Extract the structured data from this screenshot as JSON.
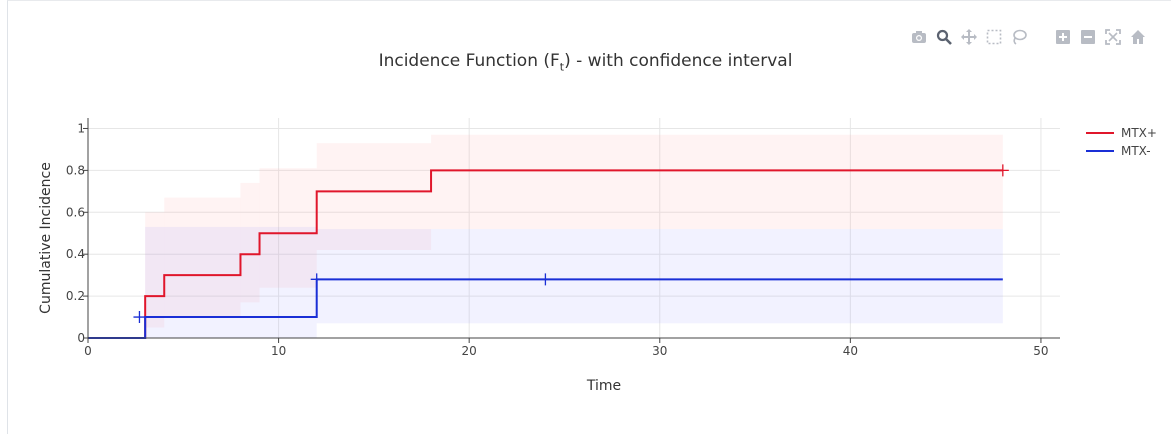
{
  "chart_data": {
    "type": "line",
    "title_main": "Incidence Function (F",
    "title_sub": "t",
    "title_tail": ") - with confidence interval",
    "xlabel": "Time",
    "ylabel": "Cumulative Incidence",
    "xlim": [
      0,
      51
    ],
    "ylim": [
      0,
      1.05
    ],
    "xticks": [
      0,
      10,
      20,
      30,
      40,
      50
    ],
    "yticks": [
      0,
      0.2,
      0.4,
      0.6,
      0.8,
      1
    ],
    "ytick_labels": [
      "0",
      "0.2",
      "0.4",
      "0.6",
      "0.8",
      "1"
    ],
    "grid": true,
    "legend_position": "top-right",
    "series": [
      {
        "name": "MTX+",
        "color": "#e0162b",
        "band_color": "rgba(255,170,170,0.14)",
        "steps": [
          [
            0,
            0
          ],
          [
            3,
            0.2
          ],
          [
            4,
            0.3
          ],
          [
            8,
            0.4
          ],
          [
            9,
            0.5
          ],
          [
            12,
            0.7
          ],
          [
            18,
            0.8
          ],
          [
            48,
            0.8
          ]
        ],
        "ci_band": [
          [
            3,
            0.05,
            0.6
          ],
          [
            4,
            0.1,
            0.67
          ],
          [
            8,
            0.17,
            0.74
          ],
          [
            9,
            0.24,
            0.81
          ],
          [
            12,
            0.42,
            0.93
          ],
          [
            18,
            0.52,
            0.97
          ],
          [
            48,
            0.52,
            0.97
          ]
        ],
        "censor_marks": [
          [
            48,
            0.8
          ]
        ]
      },
      {
        "name": "MTX-",
        "color": "#1a2fd6",
        "band_color": "rgba(150,150,255,0.12)",
        "steps": [
          [
            0,
            0
          ],
          [
            3,
            0.1
          ],
          [
            12,
            0.28
          ],
          [
            48,
            0.28
          ]
        ],
        "ci_band": [
          [
            3,
            0,
            0.53
          ],
          [
            12,
            0.07,
            0.52
          ],
          [
            48,
            0.07,
            0.52
          ]
        ],
        "censor_marks": [
          [
            2.7,
            0.1
          ],
          [
            12,
            0.28
          ],
          [
            24,
            0.28
          ]
        ]
      }
    ]
  },
  "modebar": {
    "icons": [
      "camera-icon",
      "zoom-icon",
      "pan-icon",
      "box-select-icon",
      "lasso-icon",
      "zoom-in-icon",
      "zoom-out-icon",
      "autoscale-icon",
      "reset-axes-icon",
      "plotly-logo-icon"
    ]
  }
}
